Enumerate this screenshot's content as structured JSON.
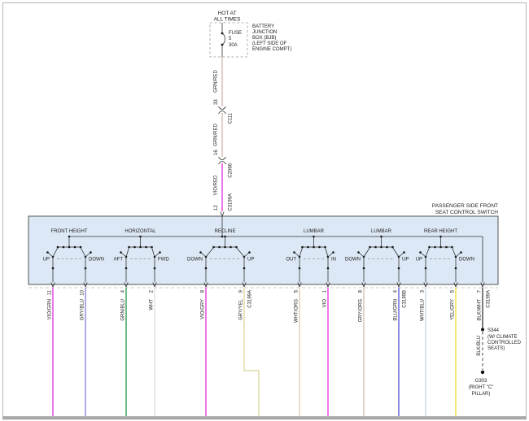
{
  "colors": {
    "panel_fill": "#dce8f5",
    "line": "#333333",
    "text": "#222222",
    "page_border": "#a8a8a8"
  },
  "power": {
    "hot_label": [
      "HOT AT",
      "ALL TIMES"
    ],
    "fuse": {
      "name": "FUSE",
      "number": "5",
      "rating": "30A"
    },
    "bjb_label": [
      "BATTERY",
      "JUNCTION",
      "BOX (BJB)",
      "(LEFT SIDE OF",
      "ENGINE COMPT)"
    ],
    "feed": [
      {
        "kind": "wire",
        "code": "GRN/RED",
        "hex": "#d9bcb0"
      },
      {
        "kind": "connector",
        "pin": "33",
        "name": "C111"
      },
      {
        "kind": "wire",
        "code": "GRN/RED",
        "hex": "#d9bcb0"
      },
      {
        "kind": "connector",
        "pin": "16",
        "name": "C2066"
      },
      {
        "kind": "wire",
        "code": "VIO/RED",
        "hex": "#e23ee2"
      },
      {
        "kind": "connector",
        "pin": "12",
        "name": "C3199A"
      }
    ]
  },
  "switch": {
    "title": [
      "PASSENGER SIDE FRONT",
      "SEAT CONTROL SWITCH"
    ],
    "sections": [
      {
        "title": "FRONT HEIGHT",
        "left": "UP",
        "right": "DOWN"
      },
      {
        "title": "HORIZONTAL",
        "left": "AFT",
        "right": "FWD"
      },
      {
        "title": "RECLINE",
        "left": "DOWN",
        "right": "UP"
      },
      {
        "title": "LUMBAR",
        "left": "OUT",
        "right": "IN"
      },
      {
        "title": "LUMBAR",
        "left": "DOWN",
        "right": "UP"
      },
      {
        "title": "REAR HEIGHT",
        "left": "UP",
        "right": "DOWN"
      }
    ]
  },
  "outputs": [
    {
      "pin": "11",
      "code": "VIO/GRN",
      "hex": "#e23ee2"
    },
    {
      "pin": "10",
      "code": "GRY/BLU",
      "hex": "#8a8ade"
    },
    {
      "pin": "4",
      "code": "GRN/BLU",
      "hex": "#2e9e50"
    },
    {
      "pin": "2",
      "code": "WHT",
      "hex": "#e2e2e2"
    },
    {
      "pin": "8",
      "code": "VIO/GRY",
      "hex": "#e23ee2"
    },
    {
      "pin": "9",
      "code": "GRY/YEL",
      "hex": "#ddd8a4",
      "connector": "C3199A"
    },
    {
      "pin": "5",
      "code": "WHT/ORG",
      "hex": "#e0ccb4"
    },
    {
      "pin": "1",
      "code": "VIO",
      "hex": "#e23ee2"
    },
    {
      "pin": "8",
      "code": "GRY/ORG",
      "hex": "#d4c2ac"
    },
    {
      "pin": "4",
      "code": "BLU/GRN",
      "hex": "#5d5dd8",
      "connector": "C3199B"
    },
    {
      "pin": "3",
      "code": "WHT/BLU",
      "hex": "#cdd5ec"
    },
    {
      "pin": "5",
      "code": "YEL/GRY",
      "hex": "#ece23a"
    },
    {
      "pin": "7",
      "code": "BLK/WHT",
      "hex": "#444444",
      "connector": "C3199A"
    }
  ],
  "ground": {
    "splice": "S344",
    "splice_note": [
      "(W/ CLIMATE",
      "CONTROLLED",
      "SEATS)"
    ],
    "wire_code": "BLK/BLU",
    "ground_id": "G303",
    "ground_note": [
      "(RIGHT \"C\"",
      "PILLAR)"
    ]
  }
}
